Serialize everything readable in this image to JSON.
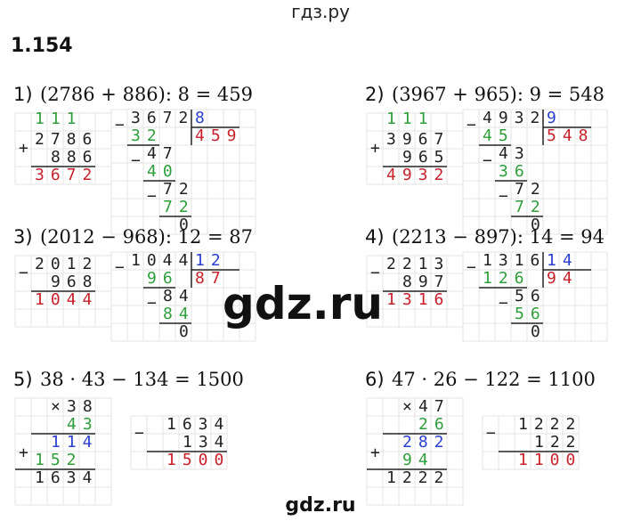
{
  "header": {
    "site": "гдз.ру",
    "number": "1.154"
  },
  "problems": [
    {
      "label": "1)",
      "expression": "(2786 + 886): 8 = 459",
      "column": {
        "op": "add",
        "sign": "+",
        "marks": "111",
        "rows": [
          "2786",
          "886"
        ],
        "result": "3672"
      },
      "division": {
        "sign": "−",
        "dividend": "3672",
        "divisor": "8",
        "quotient": "459",
        "steps": [
          "32",
          "47",
          "40",
          "72",
          "72",
          "0"
        ]
      }
    },
    {
      "label": "2)",
      "expression": "(3967 + 965): 9 = 548",
      "column": {
        "op": "add",
        "sign": "+",
        "marks": "111",
        "rows": [
          "3967",
          "965"
        ],
        "result": "4932"
      },
      "division": {
        "sign": "−",
        "dividend": "4932",
        "divisor": "9",
        "quotient": "548",
        "steps": [
          "45",
          "43",
          "36",
          "72",
          "72",
          "0"
        ]
      }
    },
    {
      "label": "3)",
      "expression": "(2012 − 968): 12 = 87",
      "column": {
        "op": "sub",
        "sign": "−",
        "rows": [
          "2012",
          "968"
        ],
        "result": "1044"
      },
      "division": {
        "sign": "−",
        "dividend": "1044",
        "divisor": "12",
        "quotient": "87",
        "steps": [
          "96",
          "84",
          "84",
          "0"
        ]
      }
    },
    {
      "label": "4)",
      "expression": "(2213 − 897): 14 = 94",
      "column": {
        "op": "sub",
        "sign": "−",
        "rows": [
          "2213",
          "897"
        ],
        "result": "1316"
      },
      "division": {
        "sign": "−",
        "dividend": "1316",
        "divisor": "14",
        "quotient": "94",
        "steps": [
          "126",
          "56",
          "56",
          "0"
        ]
      }
    },
    {
      "label": "5)",
      "expression": "38 · 43 − 134 = 1500",
      "column": {
        "op": "mul",
        "sign": "×",
        "sum_sign": "+",
        "rows": [
          "38",
          "43"
        ],
        "partials": [
          "114",
          "152"
        ],
        "result": "1634"
      },
      "second": {
        "sign": "−",
        "rows": [
          "1634",
          "134"
        ],
        "result": "1500"
      }
    },
    {
      "label": "6)",
      "expression": "47 · 26 − 122 = 1100",
      "column": {
        "op": "mul",
        "sign": "×",
        "sum_sign": "+",
        "rows": [
          "47",
          "26"
        ],
        "partials": [
          "282",
          "94"
        ],
        "result": "1222"
      },
      "second": {
        "sign": "−",
        "rows": [
          "1222",
          "122"
        ],
        "result": "1100"
      }
    }
  ],
  "watermark": "gdz.ru",
  "footer": "gdz.ru"
}
